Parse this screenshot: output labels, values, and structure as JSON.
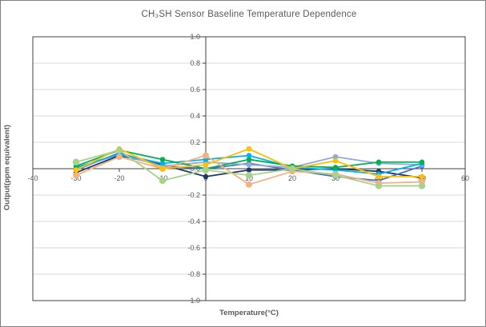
{
  "chart_data": {
    "type": "line",
    "title": "CH₃SH Sensor Baseline Temperature Dependence",
    "xlabel": "Temperature(°C)",
    "ylabel": "Output(ppm equivalent)",
    "x": [
      -30,
      -20,
      -10,
      0,
      10,
      20,
      30,
      40,
      50
    ],
    "series": [
      {
        "name": "series-navy",
        "color": "#203864",
        "marker_r": 3.2,
        "values": [
          -0.03,
          0.1,
          0.03,
          -0.06,
          -0.01,
          -0.01,
          0.0,
          -0.02,
          -0.07
        ]
      },
      {
        "name": "series-blue",
        "color": "#4472C4",
        "marker_r": 3.2,
        "values": [
          -0.01,
          0.12,
          0.02,
          0.0,
          0.04,
          -0.01,
          -0.06,
          -0.09,
          0.02
        ]
      },
      {
        "name": "series-periwinkle",
        "color": "#8FAADC",
        "marker_r": 3.4,
        "values": [
          0.0,
          0.11,
          0.02,
          0.05,
          0.03,
          0.01,
          0.09,
          0.04,
          0.03
        ]
      },
      {
        "name": "series-cyan",
        "color": "#00B0F0",
        "marker_r": 3.2,
        "values": [
          0.01,
          0.11,
          0.04,
          0.07,
          0.1,
          0.01,
          -0.01,
          -0.04,
          0.04
        ]
      },
      {
        "name": "series-green",
        "color": "#00B050",
        "marker_r": 3.2,
        "values": [
          0.02,
          0.14,
          0.07,
          0.0,
          0.07,
          0.02,
          0.01,
          0.05,
          0.05
        ]
      },
      {
        "name": "series-peach",
        "color": "#F4B183",
        "marker_r": 4.0,
        "values": [
          -0.05,
          0.09,
          0.0,
          0.1,
          -0.12,
          -0.02,
          -0.04,
          -0.11,
          -0.1
        ]
      },
      {
        "name": "series-gold",
        "color": "#FFC000",
        "marker_r": 3.4,
        "values": [
          -0.01,
          0.15,
          0.0,
          0.03,
          0.15,
          0.0,
          0.06,
          -0.06,
          -0.06
        ]
      },
      {
        "name": "series-light-green",
        "color": "#A9D18E",
        "marker_r": 4.2,
        "values": [
          0.05,
          0.14,
          -0.09,
          -0.01,
          -0.05,
          0.0,
          -0.05,
          -0.13,
          -0.13
        ]
      }
    ],
    "xlim": [
      -40,
      60
    ],
    "ylim": [
      -1.0,
      1.0
    ],
    "x_tick_step": 10,
    "y_tick_step": 0.2,
    "grid": "horizontal",
    "legend_position": "none",
    "colors": {
      "axis_line": "#404040",
      "plot_border": "#404040",
      "gridline": "#D9D9D9",
      "tick_label": "#595959",
      "title_text": "#595959",
      "outer_border": "#808080",
      "background": "#FFFFFF"
    }
  }
}
